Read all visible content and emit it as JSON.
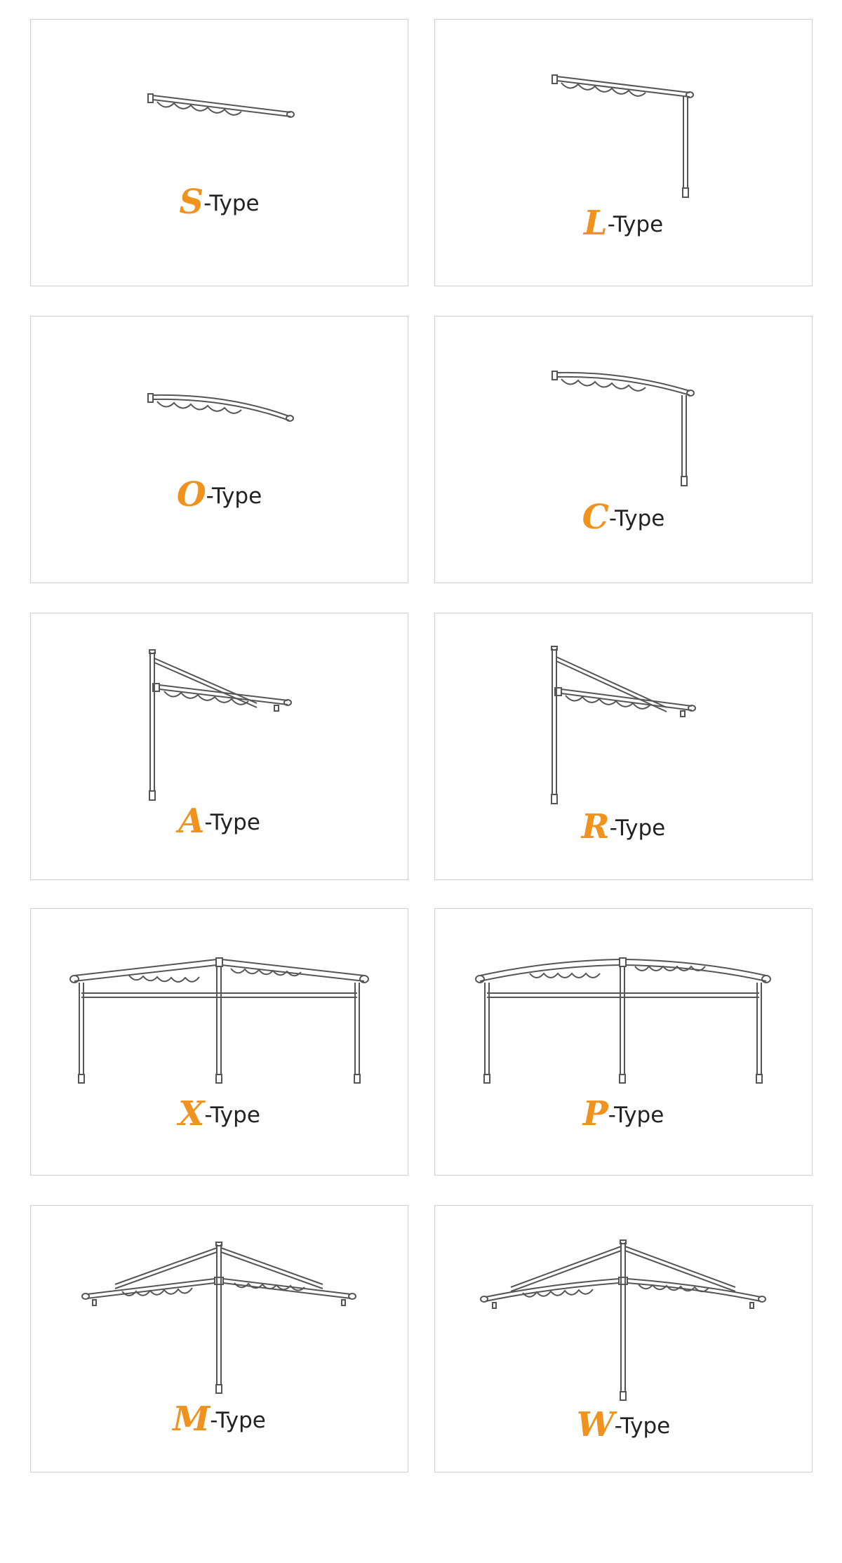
{
  "accent_color": "#f0921e",
  "line_color": "#555555",
  "types": [
    {
      "letter": "S",
      "suffix": "-Type",
      "icon": "s-type-awning-icon"
    },
    {
      "letter": "L",
      "suffix": "-Type",
      "icon": "l-type-awning-icon"
    },
    {
      "letter": "O",
      "suffix": "-Type",
      "icon": "o-type-awning-icon"
    },
    {
      "letter": "C",
      "suffix": "-Type",
      "icon": "c-type-awning-icon"
    },
    {
      "letter": "A",
      "suffix": "-Type",
      "icon": "a-type-awning-icon"
    },
    {
      "letter": "R",
      "suffix": "-Type",
      "icon": "r-type-awning-icon"
    },
    {
      "letter": "X",
      "suffix": "-Type",
      "icon": "x-type-awning-icon"
    },
    {
      "letter": "P",
      "suffix": "-Type",
      "icon": "p-type-awning-icon"
    },
    {
      "letter": "M",
      "suffix": "-Type",
      "icon": "m-type-awning-icon"
    },
    {
      "letter": "W",
      "suffix": "-Type",
      "icon": "w-type-awning-icon"
    }
  ]
}
